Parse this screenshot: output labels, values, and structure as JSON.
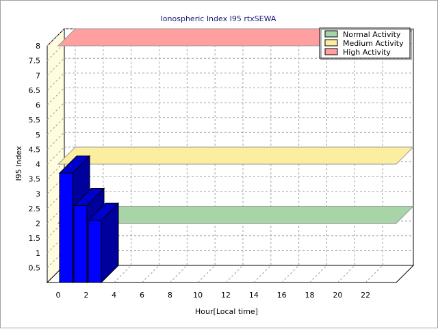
{
  "chart_data": {
    "type": "bar",
    "title": "Ionospheric Index I95 rtxSEWA",
    "xlabel": "Hour[Local time]",
    "ylabel": "I95 Index",
    "x_ticks": [
      "0",
      "2",
      "4",
      "6",
      "8",
      "10",
      "12",
      "14",
      "16",
      "18",
      "20",
      "22"
    ],
    "y_ticks": [
      "0.5",
      "1",
      "1.5",
      "2",
      "2.5",
      "3",
      "3.5",
      "4",
      "4.5",
      "5",
      "5.5",
      "6",
      "6.5",
      "7",
      "7.5",
      "8"
    ],
    "ylim": [
      0,
      8
    ],
    "xlim": [
      0,
      24
    ],
    "grid": true,
    "legend_position": "top-right",
    "series": [
      {
        "name": "I95",
        "x": [
          0,
          1,
          2
        ],
        "values": [
          3.7,
          2.6,
          2.1
        ],
        "color": "#0000ff"
      }
    ],
    "bands": [
      {
        "name": "Normal Activity",
        "value": 2,
        "color": "#a8d5a8"
      },
      {
        "name": "Medium Activity",
        "value": 4,
        "color": "#fbeea0"
      },
      {
        "name": "High Activity",
        "value": 8,
        "color": "#ff9f9f"
      }
    ]
  }
}
